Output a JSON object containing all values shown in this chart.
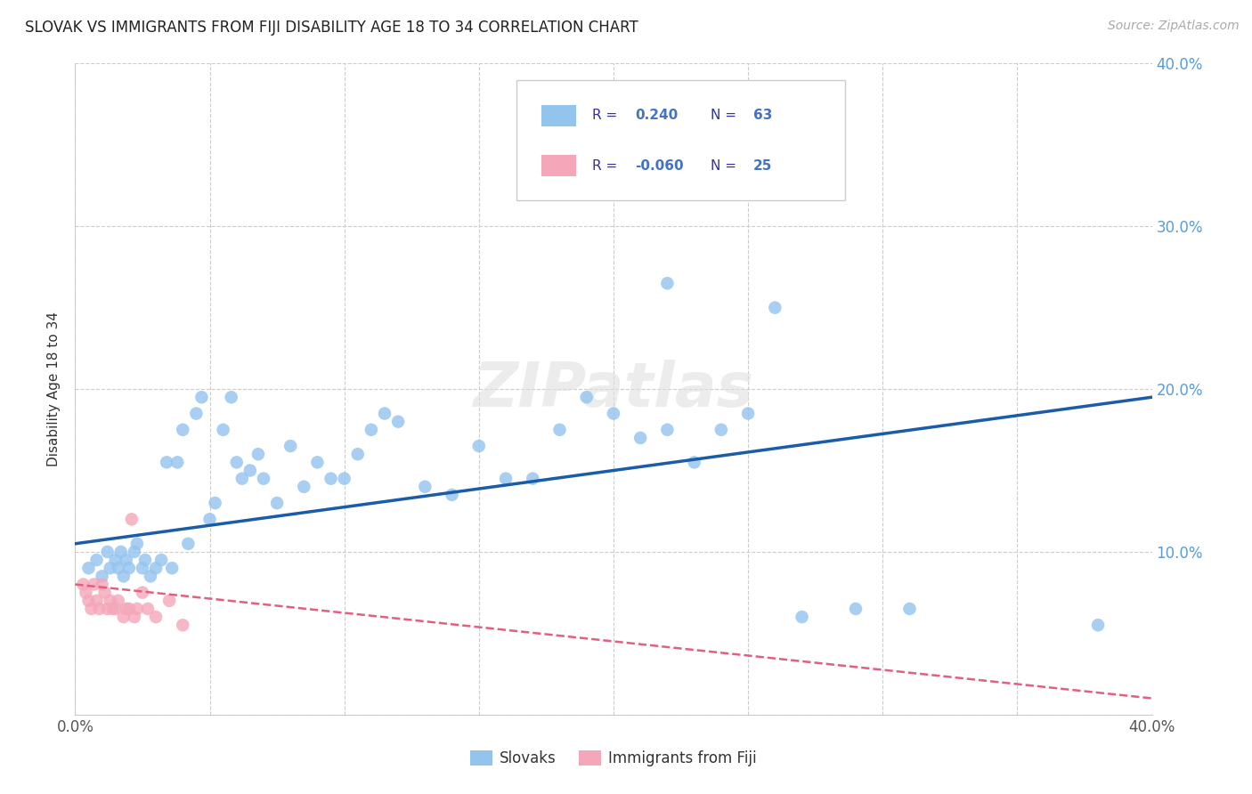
{
  "title": "SLOVAK VS IMMIGRANTS FROM FIJI DISABILITY AGE 18 TO 34 CORRELATION CHART",
  "source": "Source: ZipAtlas.com",
  "ylabel": "Disability Age 18 to 34",
  "xlim": [
    0,
    0.4
  ],
  "ylim": [
    0,
    0.4
  ],
  "blue_R": 0.24,
  "blue_N": 63,
  "pink_R": -0.06,
  "pink_N": 25,
  "blue_color": "#93C4EE",
  "pink_color": "#F4A7B9",
  "line_blue": "#1A5CA8",
  "line_pink": "#E06080",
  "watermark": "ZIPatlas",
  "slovaks_x": [
    0.005,
    0.008,
    0.01,
    0.012,
    0.013,
    0.015,
    0.016,
    0.017,
    0.018,
    0.019,
    0.02,
    0.022,
    0.023,
    0.025,
    0.026,
    0.028,
    0.03,
    0.032,
    0.034,
    0.036,
    0.038,
    0.04,
    0.042,
    0.045,
    0.047,
    0.05,
    0.052,
    0.055,
    0.058,
    0.06,
    0.062,
    0.065,
    0.068,
    0.07,
    0.075,
    0.08,
    0.085,
    0.09,
    0.095,
    0.1,
    0.105,
    0.11,
    0.115,
    0.12,
    0.13,
    0.14,
    0.15,
    0.16,
    0.17,
    0.18,
    0.19,
    0.2,
    0.21,
    0.22,
    0.23,
    0.24,
    0.25,
    0.27,
    0.29,
    0.31,
    0.22,
    0.26,
    0.38
  ],
  "slovaks_y": [
    0.09,
    0.095,
    0.085,
    0.1,
    0.09,
    0.095,
    0.09,
    0.1,
    0.085,
    0.095,
    0.09,
    0.1,
    0.105,
    0.09,
    0.095,
    0.085,
    0.09,
    0.095,
    0.155,
    0.09,
    0.155,
    0.175,
    0.105,
    0.185,
    0.195,
    0.12,
    0.13,
    0.175,
    0.195,
    0.155,
    0.145,
    0.15,
    0.16,
    0.145,
    0.13,
    0.165,
    0.14,
    0.155,
    0.145,
    0.145,
    0.16,
    0.175,
    0.185,
    0.18,
    0.14,
    0.135,
    0.165,
    0.145,
    0.145,
    0.175,
    0.195,
    0.185,
    0.17,
    0.175,
    0.155,
    0.175,
    0.185,
    0.06,
    0.065,
    0.065,
    0.265,
    0.25,
    0.055
  ],
  "fiji_x": [
    0.003,
    0.004,
    0.005,
    0.006,
    0.007,
    0.008,
    0.009,
    0.01,
    0.011,
    0.012,
    0.013,
    0.014,
    0.015,
    0.016,
    0.018,
    0.019,
    0.02,
    0.021,
    0.022,
    0.023,
    0.025,
    0.027,
    0.03,
    0.035,
    0.04
  ],
  "fiji_y": [
    0.08,
    0.075,
    0.07,
    0.065,
    0.08,
    0.07,
    0.065,
    0.08,
    0.075,
    0.065,
    0.07,
    0.065,
    0.065,
    0.07,
    0.06,
    0.065,
    0.065,
    0.12,
    0.06,
    0.065,
    0.075,
    0.065,
    0.06,
    0.07,
    0.055
  ]
}
